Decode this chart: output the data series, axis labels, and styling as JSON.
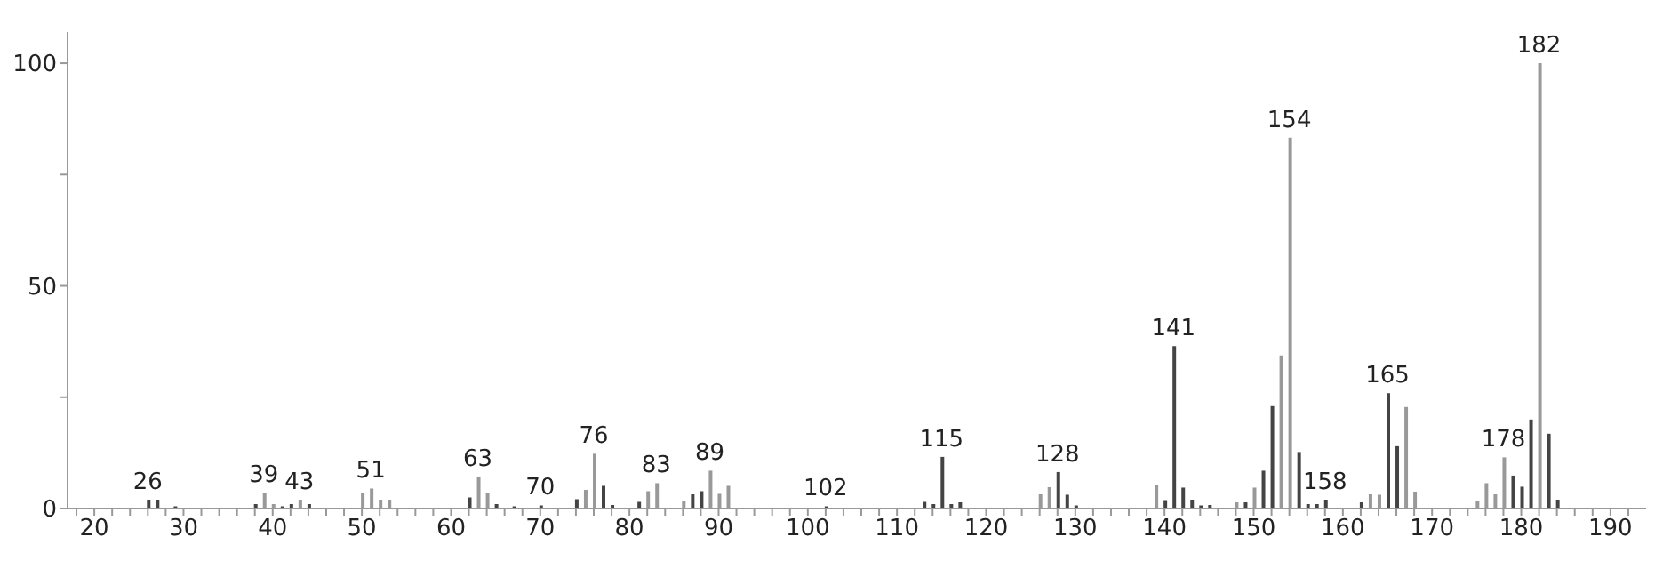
{
  "chart_data": {
    "type": "bar",
    "x": [
      26,
      27,
      29,
      38,
      39,
      40,
      41,
      42,
      43,
      44,
      50,
      51,
      52,
      53,
      62,
      63,
      64,
      65,
      67,
      70,
      74,
      75,
      76,
      77,
      78,
      81,
      82,
      83,
      86,
      87,
      88,
      89,
      90,
      91,
      102,
      113,
      114,
      115,
      116,
      117,
      126,
      127,
      128,
      129,
      130,
      139,
      140,
      141,
      142,
      143,
      144,
      145,
      148,
      149,
      150,
      151,
      152,
      153,
      154,
      155,
      156,
      157,
      158,
      162,
      163,
      164,
      165,
      166,
      167,
      168,
      175,
      176,
      177,
      178,
      179,
      180,
      181,
      182,
      183,
      184
    ],
    "values": [
      2,
      2,
      0.5,
      1,
      3.5,
      1,
      0.5,
      1,
      2,
      1,
      3.5,
      4.5,
      2,
      2,
      2.5,
      7.2,
      3.5,
      1,
      0.5,
      0.7,
      2.1,
      4.2,
      12.3,
      5.1,
      0.8,
      1.5,
      3.9,
      5.7,
      1.8,
      3.2,
      3.9,
      8.5,
      3.3,
      5.1,
      0.5,
      1.5,
      1,
      11.6,
      1,
      1.4,
      3.2,
      4.8,
      8.2,
      3.1,
      0.7,
      5.3,
      1.9,
      36.5,
      4.7,
      2,
      0.7,
      0.8,
      1.4,
      1.4,
      4.7,
      8.5,
      23,
      34.4,
      83.3,
      12.7,
      1,
      1,
      2,
      1.4,
      3.2,
      3.1,
      25.9,
      14,
      22.8,
      3.8,
      1.7,
      5.7,
      3.2,
      11.5,
      7.4,
      4.9,
      20,
      100,
      16.8,
      2
    ],
    "colors": [
      "#444444",
      "#444444",
      "#444444",
      "#444444",
      "#999999",
      "#999999",
      "#444444",
      "#444444",
      "#999999",
      "#444444",
      "#999999",
      "#999999",
      "#999999",
      "#999999",
      "#444444",
      "#999999",
      "#999999",
      "#444444",
      "#444444",
      "#444444",
      "#444444",
      "#999999",
      "#999999",
      "#444444",
      "#444444",
      "#444444",
      "#999999",
      "#999999",
      "#999999",
      "#444444",
      "#444444",
      "#999999",
      "#999999",
      "#999999",
      "#444444",
      "#444444",
      "#444444",
      "#444444",
      "#444444",
      "#444444",
      "#999999",
      "#999999",
      "#444444",
      "#444444",
      "#444444",
      "#999999",
      "#444444",
      "#444444",
      "#444444",
      "#444444",
      "#444444",
      "#444444",
      "#999999",
      "#444444",
      "#999999",
      "#444444",
      "#444444",
      "#999999",
      "#999999",
      "#444444",
      "#444444",
      "#444444",
      "#444444",
      "#444444",
      "#999999",
      "#999999",
      "#444444",
      "#444444",
      "#999999",
      "#999999",
      "#999999",
      "#999999",
      "#999999",
      "#999999",
      "#444444",
      "#444444",
      "#444444",
      "#999999",
      "#444444",
      "#444444"
    ],
    "xlim": [
      17,
      194
    ],
    "xticks": [
      {
        "value": 18,
        "label": null
      },
      20,
      {
        "value": 22,
        "label": null
      },
      {
        "value": 24,
        "label": null
      },
      {
        "value": 26,
        "label": null
      },
      {
        "value": 28,
        "label": null
      },
      30,
      {
        "value": 32,
        "label": null
      },
      {
        "value": 34,
        "label": null
      },
      {
        "value": 36,
        "label": null
      },
      {
        "value": 38,
        "label": null
      },
      40,
      {
        "value": 42,
        "label": null
      },
      {
        "value": 44,
        "label": null
      },
      {
        "value": 46,
        "label": null
      },
      {
        "value": 48,
        "label": null
      },
      50,
      {
        "value": 52,
        "label": null
      },
      {
        "value": 54,
        "label": null
      },
      {
        "value": 56,
        "label": null
      },
      {
        "value": 58,
        "label": null
      },
      60,
      {
        "value": 62,
        "label": null
      },
      {
        "value": 64,
        "label": null
      },
      {
        "value": 66,
        "label": null
      },
      {
        "value": 68,
        "label": null
      },
      70,
      {
        "value": 72,
        "label": null
      },
      {
        "value": 74,
        "label": null
      },
      {
        "value": 76,
        "label": null
      },
      {
        "value": 78,
        "label": null
      },
      80,
      {
        "value": 82,
        "label": null
      },
      {
        "value": 84,
        "label": null
      },
      {
        "value": 86,
        "label": null
      },
      {
        "value": 88,
        "label": null
      },
      90,
      {
        "value": 92,
        "label": null
      },
      {
        "value": 94,
        "label": null
      },
      {
        "value": 96,
        "label": null
      },
      {
        "value": 98,
        "label": null
      },
      100,
      {
        "value": 102,
        "label": null
      },
      {
        "value": 104,
        "label": null
      },
      {
        "value": 106,
        "label": null
      },
      {
        "value": 108,
        "label": null
      },
      110,
      {
        "value": 112,
        "label": null
      },
      {
        "value": 114,
        "label": null
      },
      {
        "value": 116,
        "label": null
      },
      {
        "value": 118,
        "label": null
      },
      120,
      {
        "value": 122,
        "label": null
      },
      {
        "value": 124,
        "label": null
      },
      {
        "value": 126,
        "label": null
      },
      {
        "value": 128,
        "label": null
      },
      130,
      {
        "value": 132,
        "label": null
      },
      {
        "value": 134,
        "label": null
      },
      {
        "value": 136,
        "label": null
      },
      {
        "value": 138,
        "label": null
      },
      140,
      {
        "value": 142,
        "label": null
      },
      {
        "value": 144,
        "label": null
      },
      {
        "value": 146,
        "label": null
      },
      {
        "value": 148,
        "label": null
      },
      150,
      {
        "value": 152,
        "label": null
      },
      {
        "value": 154,
        "label": null
      },
      {
        "value": 156,
        "label": null
      },
      {
        "value": 158,
        "label": null
      },
      160,
      {
        "value": 162,
        "label": null
      },
      {
        "value": 164,
        "label": null
      },
      {
        "value": 166,
        "label": null
      },
      {
        "value": 168,
        "label": null
      },
      170,
      {
        "value": 172,
        "label": null
      },
      {
        "value": 174,
        "label": null
      },
      {
        "value": 176,
        "label": null
      },
      {
        "value": 178,
        "label": null
      },
      180,
      {
        "value": 182,
        "label": null
      },
      {
        "value": 184,
        "label": null
      },
      {
        "value": 186,
        "label": null
      },
      {
        "value": 188,
        "label": null
      },
      190,
      {
        "value": 192,
        "label": null
      }
    ],
    "ylim": [
      0,
      107
    ],
    "yticks": [
      0,
      {
        "value": 25,
        "label": null
      },
      50,
      {
        "value": 75,
        "label": null
      },
      100
    ],
    "annotations": [
      {
        "text": "26",
        "x": 26,
        "y": 2
      },
      {
        "text": "39",
        "x": 39,
        "y": 3.5
      },
      {
        "text": "43",
        "x": 43,
        "y": 2
      },
      {
        "text": "51",
        "x": 51,
        "y": 4.5
      },
      {
        "text": "63",
        "x": 63,
        "y": 7.2
      },
      {
        "text": "70",
        "x": 70,
        "y": 0.7
      },
      {
        "text": "76",
        "x": 76,
        "y": 12.3
      },
      {
        "text": "83",
        "x": 83,
        "y": 5.7
      },
      {
        "text": "89",
        "x": 89,
        "y": 8.5
      },
      {
        "text": "102",
        "x": 102,
        "y": 0.5
      },
      {
        "text": "115",
        "x": 115,
        "y": 11.6
      },
      {
        "text": "128",
        "x": 128,
        "y": 8.2
      },
      {
        "text": "141",
        "x": 141,
        "y": 36.5
      },
      {
        "text": "154",
        "x": 154,
        "y": 83.3
      },
      {
        "text": "158",
        "x": 158,
        "y": 2
      },
      {
        "text": "165",
        "x": 165,
        "y": 25.9
      },
      {
        "text": "178",
        "x": 178,
        "y": 11.5
      },
      {
        "text": "182",
        "x": 182,
        "y": 100
      }
    ]
  }
}
